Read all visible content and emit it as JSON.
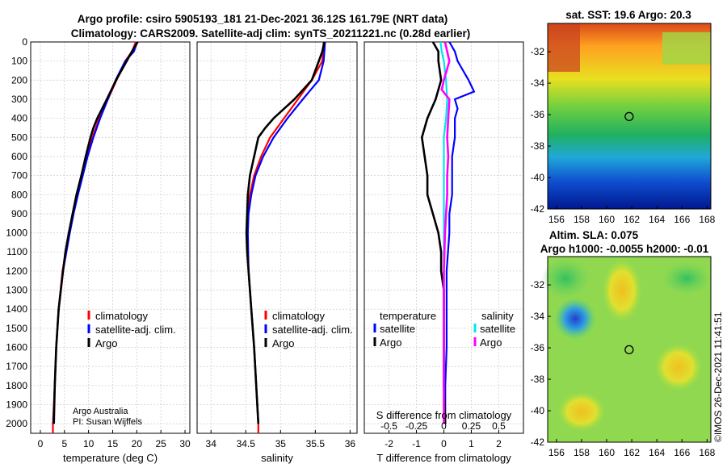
{
  "title": {
    "line1": "Argo profile: csiro 5905193_181 21-Dec-2021 36.12S 161.79E (NRT data)",
    "line2": "Climatology: CARS2009. Satellite-adj clim: synTS_20211221.nc (0.28d earlier)"
  },
  "colors": {
    "climatology": "#ff0000",
    "satellite": "#0000ff",
    "argo": "#000000",
    "sat_salinity": "#00e5ee",
    "argo_salinity": "#ff00ff"
  },
  "chart_data": [
    {
      "type": "line",
      "id": "temperature",
      "xlabel": "temperature (deg C)",
      "ylabel": "",
      "xlim": [
        -2,
        31
      ],
      "ylim": [
        2050,
        0
      ],
      "xticks": [
        0,
        5,
        10,
        15,
        20,
        25,
        30
      ],
      "yticks": [
        0,
        100,
        200,
        300,
        400,
        500,
        600,
        700,
        800,
        900,
        1000,
        1100,
        1200,
        1300,
        1400,
        1500,
        1600,
        1700,
        1800,
        1900,
        2000
      ],
      "legend": [
        "climatology",
        "satellite-adj. clim.",
        "Argo"
      ],
      "credit": [
        "Argo Australia",
        "PI: Susan Wijffels"
      ],
      "series": [
        {
          "name": "climatology",
          "depth": [
            0,
            50,
            100,
            200,
            300,
            400,
            500,
            600,
            700,
            800,
            900,
            1000,
            1200,
            1400,
            1600,
            1800,
            2000,
            2050
          ],
          "values": [
            19.8,
            19.0,
            17.6,
            15.8,
            14.0,
            12.2,
            10.8,
            9.6,
            8.6,
            7.6,
            6.8,
            6.0,
            4.6,
            3.8,
            3.3,
            3.0,
            2.6,
            2.6
          ]
        },
        {
          "name": "satellite-adj. clim.",
          "depth": [
            0,
            50,
            100,
            200,
            300,
            400,
            500,
            600,
            700,
            800,
            900,
            1000,
            1200,
            1400,
            1600,
            1800,
            2000
          ],
          "values": [
            20.1,
            19.4,
            17.6,
            15.6,
            14.0,
            12.4,
            11.0,
            9.8,
            8.8,
            7.8,
            6.9,
            6.1,
            4.7,
            3.8,
            3.3,
            3.0,
            2.7
          ]
        },
        {
          "name": "Argo",
          "depth": [
            0,
            40,
            100,
            200,
            300,
            400,
            450,
            500,
            600,
            700,
            800,
            900,
            1000,
            1100,
            1200,
            1400,
            1600,
            1800,
            2000
          ],
          "values": [
            20.2,
            19.2,
            17.9,
            15.7,
            13.8,
            11.8,
            11.0,
            10.4,
            9.4,
            8.5,
            7.5,
            6.7,
            5.9,
            5.2,
            4.7,
            3.8,
            3.3,
            3.0,
            2.8
          ]
        }
      ]
    },
    {
      "type": "line",
      "id": "salinity",
      "xlabel": "salinity",
      "ylabel": "",
      "xlim": [
        33.8,
        36.1
      ],
      "ylim": [
        2050,
        0
      ],
      "xticks": [
        34,
        34.5,
        35,
        35.5,
        36
      ],
      "legend": [
        "climatology",
        "satellite-adj. clim.",
        "Argo"
      ],
      "series": [
        {
          "name": "climatology",
          "depth": [
            0,
            100,
            200,
            300,
            400,
            500,
            600,
            700,
            800,
            900,
            1000,
            1200,
            1400,
            1600,
            1800,
            2000,
            2050
          ],
          "values": [
            35.62,
            35.6,
            35.45,
            35.25,
            35.05,
            34.85,
            34.72,
            34.62,
            34.56,
            34.53,
            34.52,
            34.54,
            34.58,
            34.62,
            34.65,
            34.68,
            34.68
          ]
        },
        {
          "name": "satellite-adj. clim.",
          "depth": [
            0,
            100,
            200,
            300,
            400,
            500,
            600,
            700,
            800,
            900,
            1000,
            1200,
            1400,
            1600,
            1800,
            2000
          ],
          "values": [
            35.64,
            35.62,
            35.55,
            35.32,
            35.1,
            34.9,
            34.75,
            34.64,
            34.58,
            34.54,
            34.53,
            34.54,
            34.58,
            34.62,
            34.65,
            34.68
          ]
        },
        {
          "name": "Argo",
          "depth": [
            0,
            50,
            100,
            200,
            300,
            350,
            400,
            450,
            500,
            600,
            700,
            800,
            900,
            1000,
            1100,
            1200,
            1400,
            1600,
            1800,
            2000
          ],
          "values": [
            35.63,
            35.6,
            35.55,
            35.45,
            35.2,
            35.05,
            34.9,
            34.78,
            34.68,
            34.62,
            34.56,
            34.53,
            34.52,
            34.51,
            34.52,
            34.54,
            34.58,
            34.62,
            34.65,
            34.68
          ]
        }
      ]
    },
    {
      "type": "line",
      "id": "difference",
      "xlabel": "T difference from climatology",
      "x2label": "S difference from climatology",
      "xlim": [
        -2.9,
        2.9
      ],
      "ylim": [
        2050,
        0
      ],
      "xticks": [
        -2,
        -1,
        0,
        1,
        2
      ],
      "xtick_labels": [
        "-2",
        "-1",
        "0",
        "1",
        "2"
      ],
      "x2ticks": [
        -0.5,
        -0.25,
        0,
        0.25,
        0.5
      ],
      "x2tick_labels": [
        "-0.5",
        "-0.25",
        "0",
        "0.25",
        "0.5"
      ],
      "legend_temperature_title": "temperature",
      "legend_salinity_title": "salinity",
      "legend": [
        "satellite",
        "Argo",
        "satellite",
        "Argo"
      ],
      "series": [
        {
          "name": "temperature satellite",
          "depth": [
            0,
            50,
            100,
            150,
            200,
            260,
            300,
            350,
            400,
            500,
            600,
            700,
            800,
            900,
            1000,
            1200,
            1400,
            1600,
            1800,
            2000
          ],
          "values": [
            0.2,
            0.4,
            0.5,
            0.7,
            0.9,
            1.1,
            0.4,
            0.5,
            0.4,
            0.4,
            0.3,
            0.3,
            0.3,
            0.2,
            0.2,
            0.1,
            0.1,
            0.1,
            0.05,
            0.05
          ]
        },
        {
          "name": "temperature Argo",
          "depth": [
            0,
            50,
            100,
            200,
            300,
            400,
            500,
            600,
            700,
            800,
            900,
            1000,
            1100,
            1200,
            1300,
            1400,
            1500,
            1600,
            1800,
            2000
          ],
          "values": [
            -0.4,
            -0.2,
            -0.2,
            -0.1,
            -0.3,
            -0.6,
            -0.8,
            -0.7,
            -0.6,
            -0.6,
            -0.4,
            -0.2,
            -0.1,
            -0.1,
            0.0,
            0.0,
            0.0,
            0.0,
            0.0,
            0.05
          ]
        },
        {
          "name": "salinity satellite",
          "depth": [
            0,
            50,
            100,
            200,
            300,
            400,
            500,
            600,
            800,
            1000,
            1200,
            1400,
            1600,
            1800,
            2000
          ],
          "values": [
            -0.03,
            -0.02,
            0.0,
            0.02,
            0.03,
            0.02,
            0.0,
            0.0,
            0.0,
            0.0,
            0.0,
            0.0,
            0.0,
            0.0,
            0.0
          ]
        },
        {
          "name": "salinity Argo",
          "depth": [
            0,
            50,
            100,
            200,
            250,
            300,
            400,
            500,
            600,
            700,
            800,
            900,
            1000,
            1200,
            1400,
            1600,
            1800,
            2000
          ],
          "values": [
            0.01,
            0.03,
            0.05,
            0.0,
            -0.02,
            0.05,
            0.04,
            0.03,
            0.04,
            0.03,
            0.03,
            0.02,
            0.01,
            0.0,
            0.0,
            0.0,
            0.0,
            0.0
          ]
        }
      ]
    },
    {
      "type": "heatmap",
      "id": "sst",
      "title": "sat. SST: 19.6 Argo: 20.3",
      "xticks": [
        156,
        158,
        160,
        162,
        164,
        166,
        168
      ],
      "yticks": [
        -32,
        -34,
        -36,
        -38,
        -40,
        -42
      ],
      "xlim": [
        155.3,
        168.3
      ],
      "ylim": [
        -42,
        -30.2
      ],
      "marker": {
        "lon": 161.79,
        "lat": -36.12
      }
    },
    {
      "type": "heatmap",
      "id": "sla",
      "title": "Altim. SLA: 0.075",
      "subtitle": "Argo h1000: -0.0055 h2000: -0.01",
      "xticks": [
        156,
        158,
        160,
        162,
        164,
        166,
        168
      ],
      "yticks": [
        -32,
        -34,
        -36,
        -38,
        -40,
        -42
      ],
      "xlim": [
        155.3,
        168.3
      ],
      "ylim": [
        -42,
        -30.2
      ],
      "marker": {
        "lon": 161.79,
        "lat": -36.12
      }
    }
  ],
  "credit_side": "©IMOS 26-Dec-2021 11:41:51"
}
